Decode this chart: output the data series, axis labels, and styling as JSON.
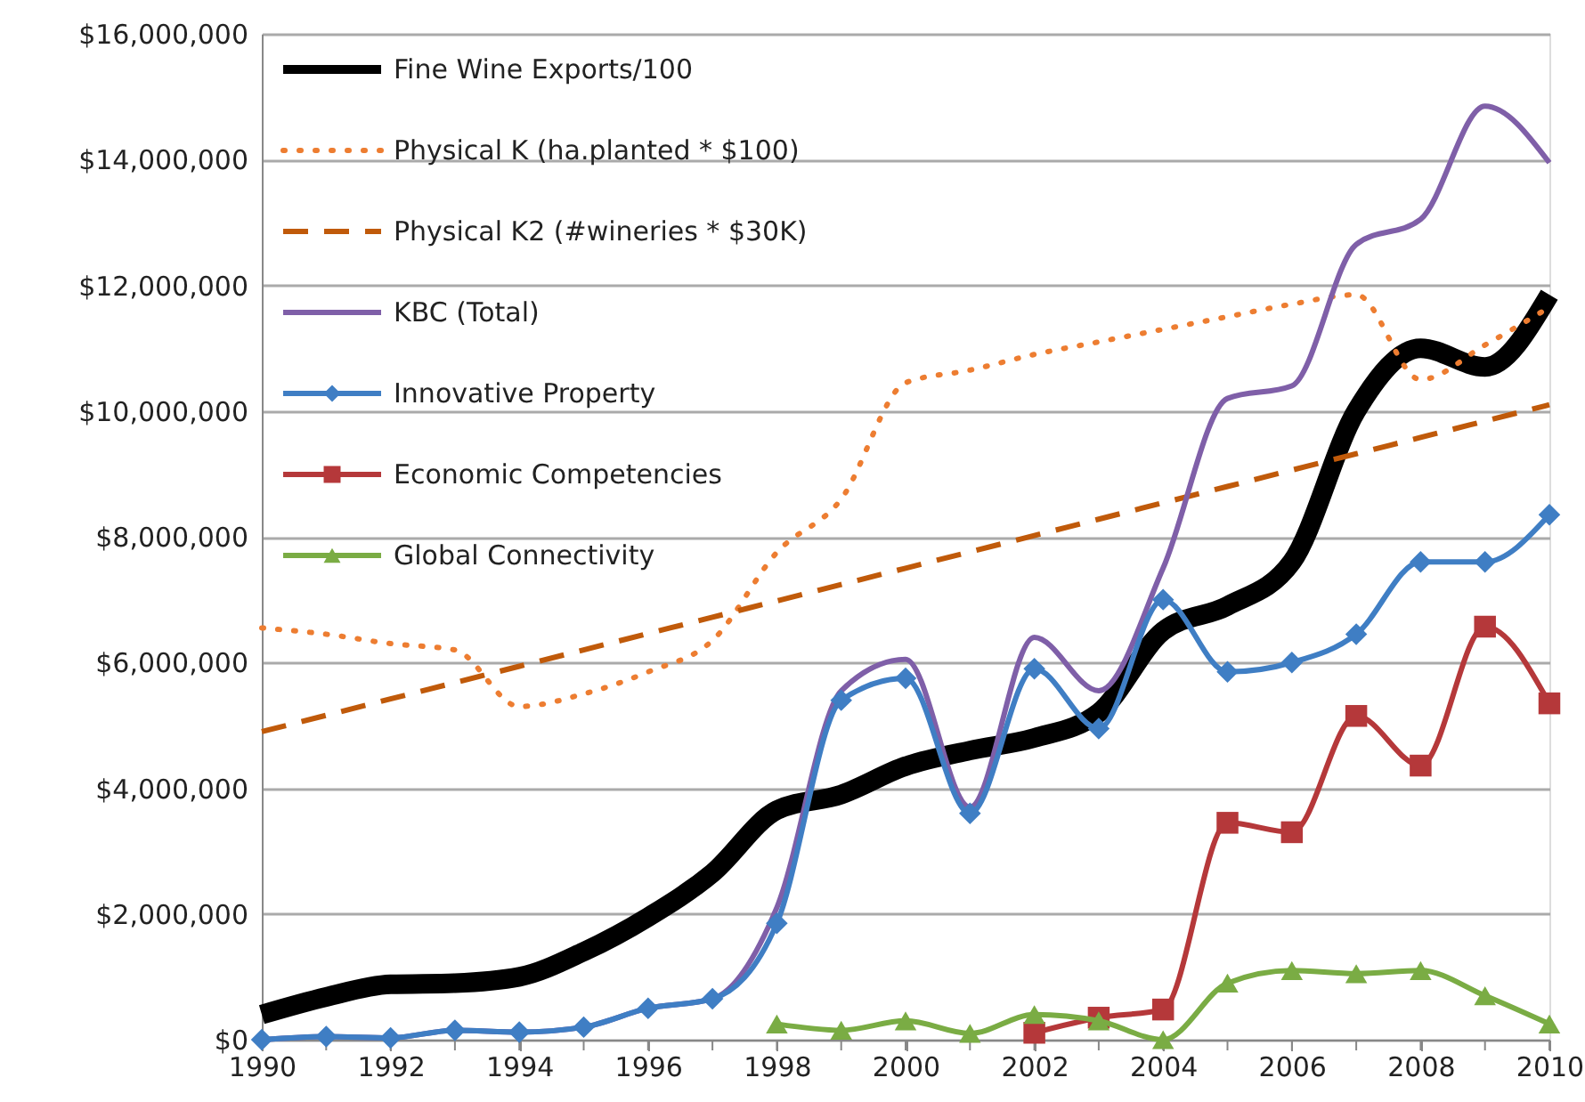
{
  "chart_data": {
    "type": "line",
    "x": [
      1990,
      1991,
      1992,
      1993,
      1994,
      1995,
      1996,
      1997,
      1998,
      1999,
      2000,
      2001,
      2002,
      2003,
      2004,
      2005,
      2006,
      2007,
      2008,
      2009,
      2010
    ],
    "series": [
      {
        "name": "Fine Wine Exports/100",
        "color": "#000000",
        "line_style": "solid",
        "marker": "none",
        "values": [
          400000,
          680000,
          880000,
          900000,
          1000000,
          1400000,
          1950000,
          2650000,
          3650000,
          3900000,
          4350000,
          4600000,
          4800000,
          5200000,
          6500000,
          6900000,
          7600000,
          10000000,
          11000000,
          10700000,
          11850000
        ]
      },
      {
        "name": "Physical K (ha.planted * $100)",
        "color": "#ed7d31",
        "line_style": "dotted",
        "marker": "none",
        "values": [
          6550000,
          6450000,
          6300000,
          6200000,
          5300000,
          5500000,
          5850000,
          6350000,
          7750000,
          8600000,
          10450000,
          10650000,
          10900000,
          11100000,
          11300000,
          11500000,
          11700000,
          11850000,
          10500000,
          11050000,
          11650000
        ]
      },
      {
        "name": "Physical K2 (#wineries * $30K)",
        "color": "#c05a0a",
        "line_style": "dashed",
        "marker": "none",
        "values": [
          4900000,
          5160000,
          5420000,
          5680000,
          5940000,
          6200000,
          6460000,
          6720000,
          6980000,
          7240000,
          7500000,
          7760000,
          8020000,
          8280000,
          8540000,
          8800000,
          9060000,
          9320000,
          9580000,
          9840000,
          10100000
        ]
      },
      {
        "name": "KBC (Total)",
        "color": "#7f5fa8",
        "line_style": "solid",
        "marker": "none",
        "values": [
          0,
          50000,
          30000,
          150000,
          120000,
          200000,
          500000,
          650000,
          2100000,
          5550000,
          6050000,
          3700000,
          6400000,
          5550000,
          7500000,
          10200000,
          10400000,
          12650000,
          13050000,
          14850000,
          13950000
        ]
      },
      {
        "name": "Innovative Property",
        "color": "#3f7ec4",
        "line_style": "solid",
        "marker": "diamond",
        "values": [
          0,
          50000,
          30000,
          150000,
          120000,
          200000,
          500000,
          650000,
          1850000,
          5400000,
          5750000,
          3600000,
          5900000,
          4950000,
          7000000,
          5850000,
          6000000,
          6450000,
          7600000,
          7600000,
          8350000
        ]
      },
      {
        "name": "Economic Competencies",
        "color": "#b5383a",
        "line_style": "solid",
        "marker": "square",
        "values": [
          null,
          null,
          null,
          null,
          null,
          null,
          null,
          null,
          null,
          null,
          null,
          null,
          110000,
          350000,
          480000,
          3450000,
          3300000,
          5150000,
          4360000,
          6570000,
          5350000
        ]
      },
      {
        "name": "Global Connectivity",
        "color": "#7aac44",
        "line_style": "solid",
        "marker": "triangle",
        "values": [
          null,
          null,
          null,
          null,
          null,
          null,
          null,
          null,
          250000,
          150000,
          300000,
          100000,
          400000,
          300000,
          0,
          900000,
          1100000,
          1050000,
          1100000,
          700000,
          250000
        ]
      }
    ],
    "xlim": [
      1990,
      2010
    ],
    "xticks": [
      1990,
      {
        "value": 1991,
        "label": null
      },
      1992,
      {
        "value": 1993,
        "label": null
      },
      1994,
      {
        "value": 1995,
        "label": null
      },
      1996,
      {
        "value": 1997,
        "label": null
      },
      1998,
      {
        "value": 1999,
        "label": null
      },
      2000,
      {
        "value": 2001,
        "label": null
      },
      2002,
      {
        "value": 2003,
        "label": null
      },
      2004,
      {
        "value": 2005,
        "label": null
      },
      2006,
      {
        "value": 2007,
        "label": null
      },
      2008,
      {
        "value": 2009,
        "label": null
      },
      2010
    ],
    "ylim": [
      0,
      16000000
    ],
    "yticks": [
      {
        "value": 0,
        "label": "$0"
      },
      {
        "value": 2000000,
        "label": "$2,000,000"
      },
      {
        "value": 4000000,
        "label": "$4,000,000"
      },
      {
        "value": 6000000,
        "label": "$6,000,000"
      },
      {
        "value": 8000000,
        "label": "$8,000,000"
      },
      {
        "value": 10000000,
        "label": "$10,000,000"
      },
      {
        "value": 12000000,
        "label": "$12,000,000"
      },
      {
        "value": 14000000,
        "label": "$14,000,000"
      },
      {
        "value": 16000000,
        "label": "$16,000,000"
      }
    ],
    "grid": "y",
    "legend": "top left"
  }
}
